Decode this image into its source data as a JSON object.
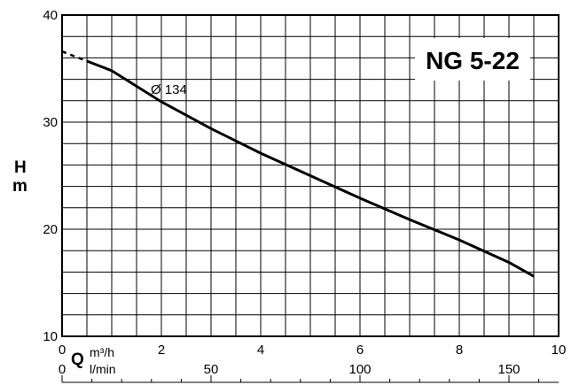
{
  "chart_data": {
    "type": "line",
    "title": "NG 5-22",
    "x": [
      0.5,
      1,
      2,
      3,
      4,
      5,
      6,
      7,
      8,
      9,
      9.5
    ],
    "series": [
      {
        "name": "Ø 134",
        "values": [
          35.7,
          34.8,
          31.9,
          29.4,
          27.1,
          25.0,
          22.9,
          20.9,
          19.0,
          16.9,
          15.6
        ]
      }
    ],
    "extrapolated_segment": {
      "x": [
        0,
        0.5
      ],
      "y": [
        36.6,
        35.7
      ]
    },
    "xlim": [
      0,
      10
    ],
    "ylim": [
      10,
      40
    ],
    "grid": true,
    "x_ticks": [
      "0",
      "2",
      "4",
      "6",
      "8",
      "10"
    ],
    "y_ticks": [
      "10",
      "20",
      "30",
      "40"
    ],
    "secondary_x_ticks": [
      "0",
      "50",
      "100",
      "150"
    ],
    "y_axis_label": {
      "symbol": "H",
      "unit": "m"
    },
    "x_axis_label": {
      "symbol": "Q",
      "unit_primary": "m³/h",
      "unit_secondary": "l/min"
    }
  }
}
